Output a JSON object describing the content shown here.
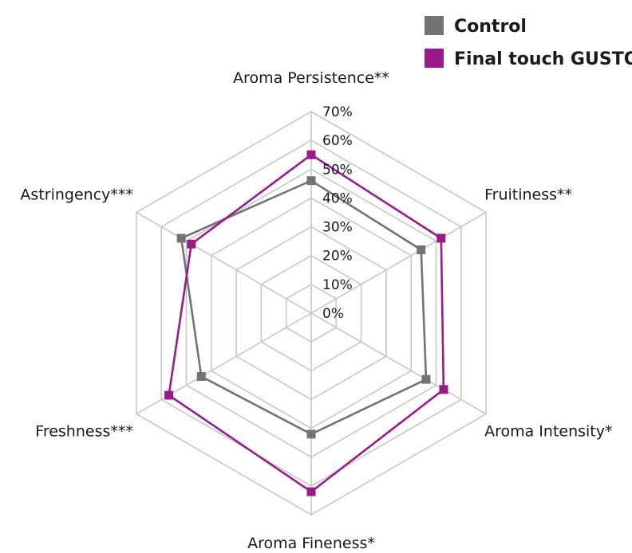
{
  "chart_data": {
    "type": "radar",
    "categories": [
      "Aroma Persistence**",
      "Fruitiness**",
      "Aroma Intensity*",
      "Aroma Fineness*",
      "Freshness***",
      "Astringency***"
    ],
    "tick_labels": [
      "0%",
      "10%",
      "20%",
      "30%",
      "40%",
      "50%",
      "60%",
      "70%"
    ],
    "rlim": [
      0,
      70
    ],
    "unit": "%",
    "grid": true,
    "legend_position": "top-right",
    "series": [
      {
        "name": "Control",
        "color": "#737373",
        "values": [
          46,
          44,
          46,
          42,
          44,
          52
        ]
      },
      {
        "name": "Final touch GUSTO",
        "color": "#9a1a8c",
        "values": [
          55,
          52,
          53,
          62,
          57,
          48
        ]
      }
    ]
  }
}
